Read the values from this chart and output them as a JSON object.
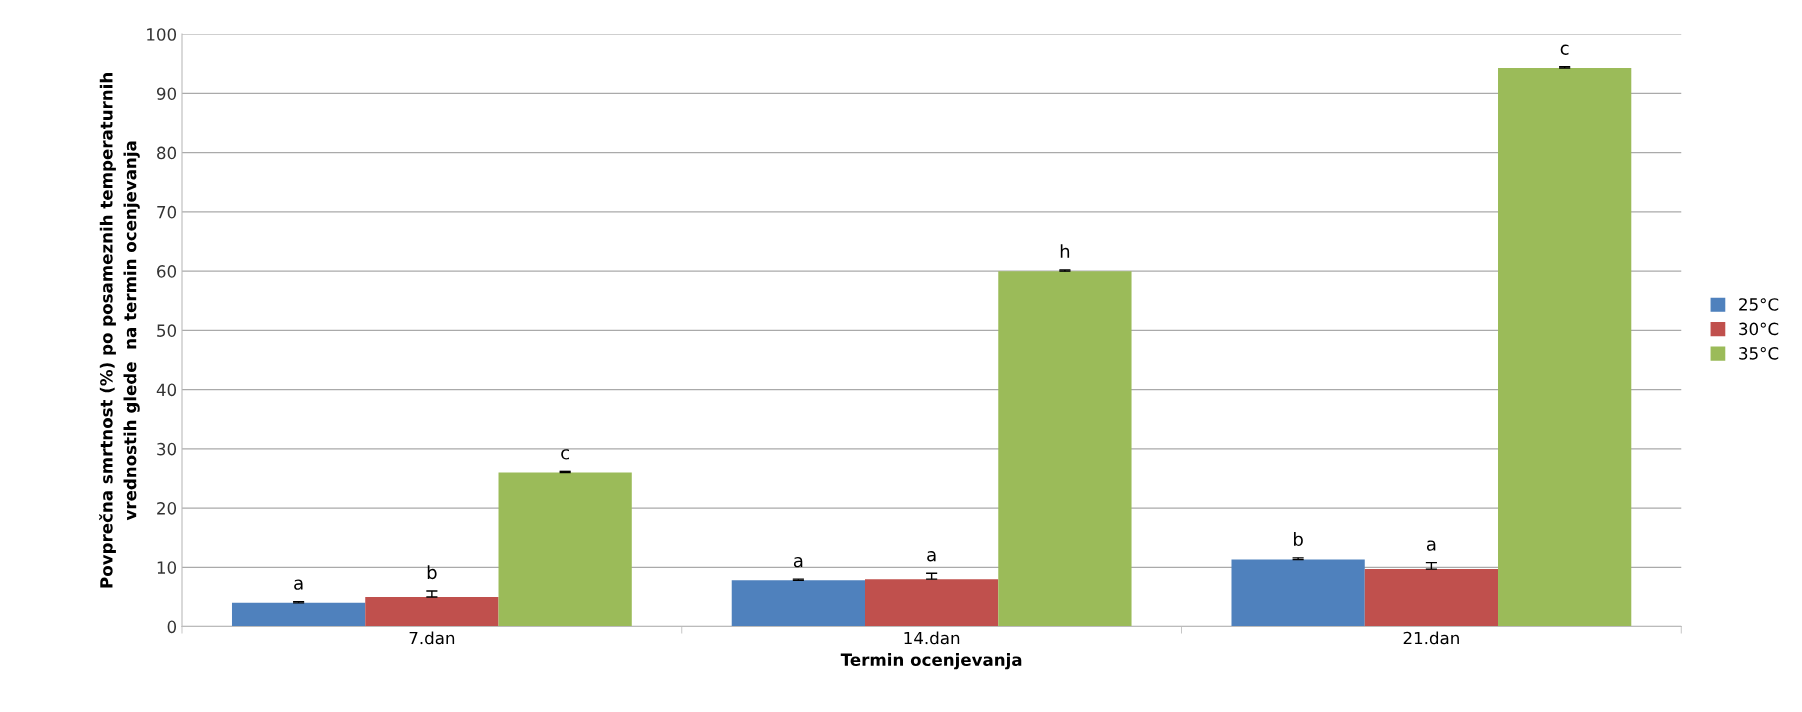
{
  "chart_data": {
    "type": "bar",
    "xlabel": "Termin ocenjevanja",
    "ylabel": "Povprečna smrtnost (%) po posameznih temperaturnih\nvrednostih glede  na termin ocenjevanja",
    "categories": [
      "7.dan",
      "14.dan",
      "21.dan"
    ],
    "series": [
      {
        "name": "25°C",
        "color": "#4f81bd",
        "values": [
          4,
          7.8,
          11.3
        ],
        "errors": [
          [
            4,
            4.2
          ],
          [
            7.8,
            8
          ],
          [
            11.3,
            11.6
          ]
        ],
        "value_labels": [
          "a",
          "a",
          "b"
        ]
      },
      {
        "name": "30°C",
        "color": "#c0504d",
        "values": [
          5,
          8,
          9.7
        ],
        "errors": [
          [
            5,
            6
          ],
          [
            8,
            9
          ],
          [
            9.7,
            10.8
          ]
        ],
        "value_labels": [
          "b",
          "a",
          "a"
        ]
      },
      {
        "name": "35°C",
        "color": "#9bbb59",
        "values": [
          26,
          60,
          94.3
        ],
        "errors": [
          [
            26,
            26.2
          ],
          [
            60,
            60.2
          ],
          [
            94.3,
            94.5
          ]
        ],
        "value_labels": [
          "c",
          "h",
          "c"
        ]
      }
    ],
    "ylim": [
      0,
      100
    ],
    "yticks": [
      0,
      10,
      20,
      30,
      40,
      50,
      60,
      70,
      80,
      90,
      100
    ],
    "grid": "y",
    "legend": "right"
  }
}
